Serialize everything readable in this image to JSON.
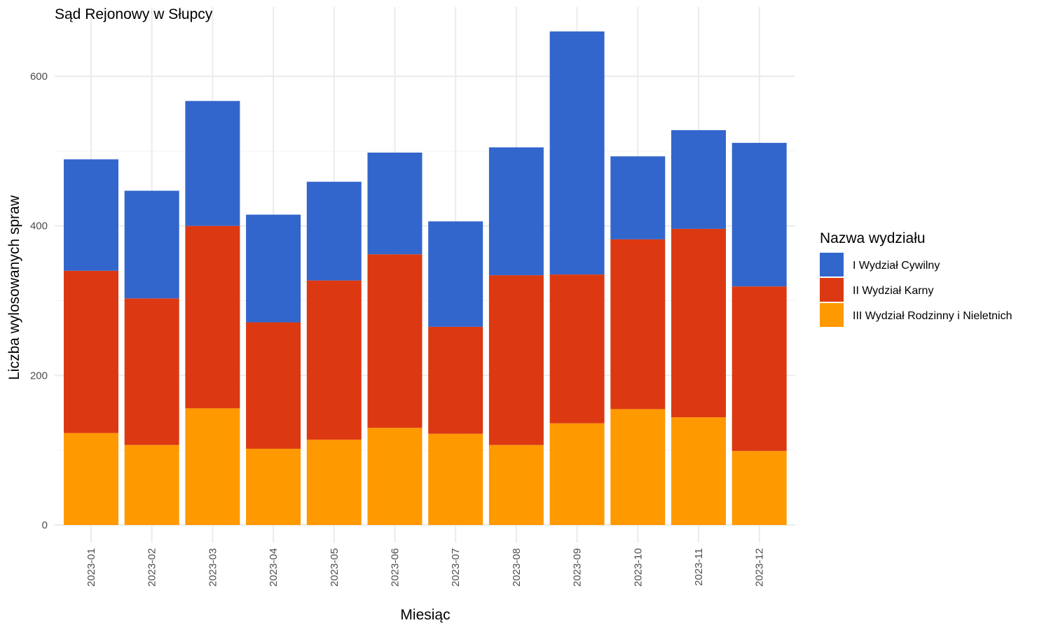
{
  "chart_data": {
    "type": "bar",
    "stacked": true,
    "title": "Sąd Rejonowy w Słupcy",
    "xlabel": "Miesiąc",
    "ylabel": "Liczba wylosowanych spraw",
    "ylim": [
      0,
      660
    ],
    "yticks": [
      0,
      200,
      400,
      600
    ],
    "grid": true,
    "legend_position": "right",
    "legend_title": "Nazwa wydziału",
    "categories": [
      "2023-01",
      "2023-02",
      "2023-03",
      "2023-04",
      "2023-05",
      "2023-06",
      "2023-07",
      "2023-08",
      "2023-09",
      "2023-10",
      "2023-11",
      "2023-12"
    ],
    "series": [
      {
        "name": "III Wydział Rodzinny i Nieletnich",
        "color": "#FF9900",
        "values": [
          123,
          107,
          156,
          102,
          114,
          130,
          122,
          107,
          136,
          155,
          144,
          99
        ]
      },
      {
        "name": "II Wydział Karny",
        "color": "#DC3912",
        "values": [
          217,
          196,
          244,
          169,
          213,
          232,
          143,
          227,
          199,
          227,
          252,
          220
        ]
      },
      {
        "name": "I Wydział Cywilny",
        "color": "#3366CC",
        "values": [
          149,
          144,
          167,
          144,
          132,
          136,
          141,
          171,
          325,
          111,
          132,
          192
        ]
      }
    ],
    "legend_order": [
      "I Wydział Cywilny",
      "II Wydział Karny",
      "III Wydział Rodzinny i Nieletnich"
    ]
  }
}
